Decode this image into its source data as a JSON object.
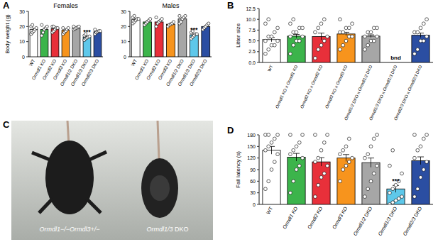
{
  "chart_data": [
    {
      "type": "bar",
      "panel": "A",
      "title": "Females",
      "y_label": "Body weight (g)",
      "categories": [
        "WT",
        "Ormdl1 KO",
        "Ormdl2 KO",
        "Ormdl3 KO",
        "Ormdl1/2 DKO",
        "Ormdl1/3 DKO",
        "Ormdl2/3 DKO"
      ],
      "values": [
        18,
        18,
        18.5,
        17.5,
        19,
        13,
        16.5
      ],
      "errors": [
        0.8,
        1,
        0.6,
        0.7,
        0.4,
        0.6,
        0.5
      ],
      "points": [
        [
          15,
          16,
          17,
          18,
          19,
          20,
          21
        ],
        [
          14,
          16,
          18,
          19,
          20,
          21
        ],
        [
          16,
          17,
          18,
          19,
          19,
          20,
          20
        ],
        [
          15,
          16,
          17,
          18,
          19,
          19
        ],
        [
          18,
          18.5,
          19,
          19.5,
          20,
          20
        ],
        [
          11,
          12,
          12.5,
          13,
          13.5,
          14,
          15
        ],
        [
          15,
          16,
          16.5,
          17,
          17,
          18
        ]
      ],
      "colors": [
        "#ffffff",
        "#3cb44b",
        "#e8303a",
        "#f7941d",
        "#a6a6a6",
        "#5ec8ea",
        "#2b4ea2"
      ],
      "annotations": [
        {
          "category": "Ormdl1/3 DKO",
          "text": "***"
        }
      ],
      "ylim": [
        0,
        30
      ],
      "yticks": [
        0,
        10,
        20,
        30
      ]
    },
    {
      "type": "bar",
      "title": "Males",
      "categories": [
        "WT",
        "Ormdl1 KO",
        "Ormdl2 KO",
        "Ormdl3 KO",
        "Ormdl1/2 DKO",
        "Ormdl1/3 DKO",
        "Ormdl2/3 DKO"
      ],
      "values": [
        24.5,
        23,
        23,
        21.5,
        25,
        14.5,
        20
      ],
      "errors": [
        0.7,
        0.9,
        0.9,
        0.6,
        0.8,
        0.6,
        0.8
      ],
      "points": [
        [
          22,
          23,
          24,
          25,
          25,
          26,
          27
        ],
        [
          21,
          22,
          23,
          24,
          25
        ],
        [
          20,
          22,
          23,
          24,
          25,
          26
        ],
        [
          20,
          21,
          21.5,
          22,
          23
        ],
        [
          22,
          23,
          25,
          26,
          27,
          27
        ],
        [
          12,
          13,
          14,
          15,
          15,
          16,
          17
        ],
        [
          18,
          19,
          20,
          21,
          22
        ]
      ],
      "colors": [
        "#ffffff",
        "#3cb44b",
        "#e8303a",
        "#f7941d",
        "#a6a6a6",
        "#5ec8ea",
        "#2b4ea2"
      ],
      "annotations": [
        {
          "category": "Ormdl1/3 DKO",
          "text": "***"
        }
      ],
      "ylim": [
        0,
        30
      ],
      "yticks": [
        0,
        10,
        20,
        30
      ]
    },
    {
      "type": "bar",
      "panel": "B",
      "y_label": "Litter size",
      "categories": [
        "WT",
        "Ormdl1 KO x Ormdl1 KO",
        "Ormdl2 KO x Ormdl2 KO",
        "Ormdl3 KO x Ormdl3 KO",
        "Ormdl1/2 DKO x Ormdl1/2 DKO",
        "Ormdl1/3 DKO x Ormdl1/3 DKO",
        "Ormdl2/3 DKO x Ormdl2/3 DKO"
      ],
      "values": [
        5.3,
        6.1,
        6,
        6.6,
        6.1,
        null,
        6.3
      ],
      "errors": [
        0.5,
        0.4,
        0.8,
        0.4,
        0.3,
        null,
        0.5
      ],
      "points": [
        [
          2,
          3,
          4,
          4,
          5,
          5,
          6,
          6,
          7,
          8,
          9,
          10
        ],
        [
          2,
          4,
          5,
          5,
          6,
          6,
          7,
          7,
          8,
          8,
          9,
          10
        ],
        [
          1,
          3,
          4,
          5,
          6,
          7,
          8,
          9,
          10
        ],
        [
          3,
          4,
          5,
          6,
          6,
          7,
          7,
          8,
          8,
          9,
          10
        ],
        [
          3,
          4,
          5,
          5,
          6,
          6,
          7,
          7,
          8,
          8
        ],
        [],
        [
          2,
          3,
          5,
          5,
          6,
          7,
          7,
          8,
          9,
          10
        ]
      ],
      "colors": [
        "#ffffff",
        "#3cb44b",
        "#e8303a",
        "#f7941d",
        "#a6a6a6",
        "#5ec8ea",
        "#2b4ea2"
      ],
      "annotations": [
        {
          "category": "Ormdl1/3 DKO x Ormdl1/3 DKO",
          "text": "bnd"
        }
      ],
      "ylim": [
        0,
        12.5
      ],
      "yticks": [
        {
          "value": 0,
          "label": "0.0"
        },
        {
          "value": 2.5,
          "label": "2.5"
        },
        {
          "value": 5,
          "label": "5.0"
        },
        {
          "value": 7.5,
          "label": "7.5"
        },
        {
          "value": 10,
          "label": "10.0"
        },
        {
          "value": 12.5,
          "label": "12.5"
        }
      ]
    },
    {
      "type": "bar",
      "panel": "D",
      "y_label": "Fall latency (s)",
      "categories": [
        "WT",
        "Ormdl1 KO",
        "Ormdl2 KO",
        "Ormdl3 KO",
        "Ormdl1/2 DKO",
        "Ormdl1/3 DKO",
        "Ormdl2/3 DKO"
      ],
      "values": [
        140,
        122,
        110,
        120,
        108,
        40,
        113
      ],
      "errors": [
        10,
        10,
        11,
        9,
        12,
        9,
        10
      ],
      "points": [
        [
          40,
          60,
          90,
          110,
          130,
          140,
          150,
          160,
          170,
          180,
          180,
          180
        ],
        [
          30,
          60,
          90,
          100,
          120,
          130,
          140,
          150,
          160,
          180,
          180
        ],
        [
          20,
          50,
          70,
          80,
          100,
          110,
          120,
          140,
          160,
          180,
          180
        ],
        [
          60,
          90,
          100,
          110,
          120,
          130,
          140,
          150,
          170
        ],
        [
          20,
          40,
          60,
          80,
          100,
          120,
          130,
          150,
          170,
          180
        ],
        [
          0,
          5,
          10,
          15,
          20,
          30,
          40,
          50,
          60,
          80,
          100,
          140
        ],
        [
          20,
          40,
          70,
          90,
          110,
          120,
          140,
          150,
          170,
          180,
          180
        ]
      ],
      "colors": [
        "#ffffff",
        "#3cb44b",
        "#e8303a",
        "#f7941d",
        "#a6a6a6",
        "#5ec8ea",
        "#2b4ea2"
      ],
      "annotations": [
        {
          "category": "Ormdl1/3 DKO",
          "text": "***"
        }
      ],
      "ylim": [
        0,
        180
      ],
      "yticks": [
        0,
        30,
        60,
        90,
        120,
        150,
        180
      ]
    }
  ],
  "photo": {
    "panel": "C",
    "labels": [
      "Ormdl1−/−Ormdl3+/−",
      "Ormdl1/3 DKO"
    ]
  }
}
